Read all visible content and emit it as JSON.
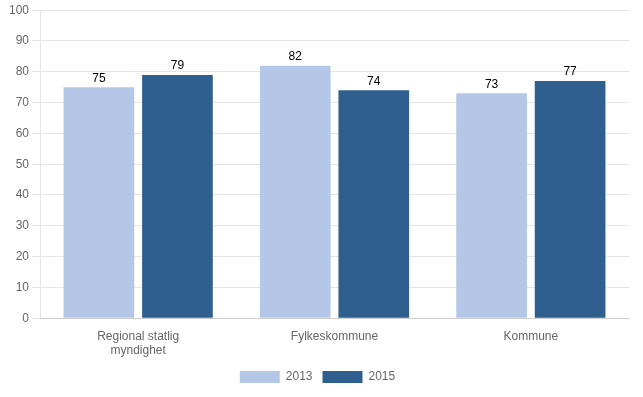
{
  "chart_data": {
    "type": "bar",
    "categories": [
      "Regional statlig\nmyndighet",
      "Fylkeskommune",
      "Kommune"
    ],
    "series": [
      {
        "name": "2013",
        "color": "#b4c7e7",
        "values": [
          75,
          82,
          73
        ]
      },
      {
        "name": "2015",
        "color": "#2f5f8f",
        "values": [
          79,
          74,
          77
        ]
      }
    ],
    "ylim": [
      0,
      100
    ],
    "yticks": [
      0,
      10,
      20,
      30,
      40,
      50,
      60,
      70,
      80,
      90,
      100
    ],
    "grid": true,
    "legend": "bottom",
    "data_labels": true
  }
}
